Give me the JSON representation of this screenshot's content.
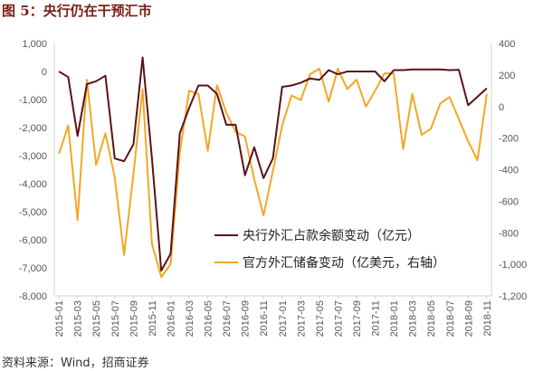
{
  "header": {
    "title": "图 5：央行仍在干预汇市"
  },
  "footer": {
    "source": "资料来源：Wind，招商证券"
  },
  "colors": {
    "series1": "#5b1315",
    "series2": "#f5a623",
    "axis": "#d0d0d0",
    "text": "#555555"
  },
  "chart_data": {
    "type": "line",
    "x": [
      "2015-01",
      "2015-02",
      "2015-03",
      "2015-04",
      "2015-05",
      "2015-06",
      "2015-07",
      "2015-08",
      "2015-09",
      "2015-10",
      "2015-11",
      "2015-12",
      "2016-01",
      "2016-02",
      "2016-03",
      "2016-04",
      "2016-05",
      "2016-06",
      "2016-07",
      "2016-08",
      "2016-09",
      "2016-10",
      "2016-11",
      "2016-12",
      "2017-01",
      "2017-02",
      "2017-03",
      "2017-04",
      "2017-05",
      "2017-06",
      "2017-07",
      "2017-08",
      "2017-09",
      "2017-10",
      "2017-11",
      "2017-12",
      "2018-01",
      "2018-02",
      "2018-03",
      "2018-04",
      "2018-05",
      "2018-06",
      "2018-07",
      "2018-08",
      "2018-09",
      "2018-10",
      "2018-11"
    ],
    "x_tick_labels": [
      "2015-01",
      "2015-03",
      "2015-05",
      "2015-07",
      "2015-09",
      "2015-11",
      "2016-01",
      "2016-03",
      "2016-05",
      "2016-07",
      "2016-09",
      "2016-11",
      "2017-01",
      "2017-03",
      "2017-05",
      "2017-07",
      "2017-09",
      "2017-11",
      "2018-01",
      "2018-03",
      "2018-05",
      "2018-07",
      "2018-09",
      "2018-11"
    ],
    "y_left": {
      "ylim": [
        -8000,
        1000
      ],
      "ticks": [
        "1,000",
        "0",
        "-1,000",
        "-2,000",
        "-3,000",
        "-4,000",
        "-5,000",
        "-6,000",
        "-7,000",
        "-8,000"
      ]
    },
    "y_right": {
      "ylim": [
        -1200,
        400
      ],
      "ticks": [
        "400",
        "200",
        "0",
        "-200",
        "-400",
        "-600",
        "-800",
        "-1,000",
        "-1,200"
      ]
    },
    "legend_position": "center-right",
    "grid": false,
    "series": [
      {
        "name": "央行外汇占款余额变动（亿元）",
        "axis": "left",
        "values": [
          0,
          -200,
          -2300,
          -450,
          -350,
          -150,
          -3100,
          -3200,
          -2600,
          500,
          -3100,
          -7100,
          -6500,
          -2200,
          -1300,
          -500,
          -500,
          -800,
          -1900,
          -1900,
          -3700,
          -2700,
          -3800,
          -3100,
          -550,
          -500,
          -400,
          -250,
          -300,
          50,
          -100,
          0,
          0,
          0,
          0,
          -350,
          50,
          50,
          70,
          70,
          70,
          70,
          50,
          60,
          -1200,
          -900,
          -600
        ]
      },
      {
        "name": "官方外汇储备变动（亿美元，右轴）",
        "axis": "right",
        "values": [
          -300,
          -120,
          -720,
          170,
          -370,
          -170,
          -450,
          -940,
          -430,
          110,
          -870,
          -1080,
          -1000,
          -290,
          100,
          80,
          -280,
          135,
          -40,
          -160,
          -190,
          -460,
          -690,
          -410,
          -120,
          70,
          40,
          205,
          240,
          30,
          240,
          110,
          170,
          0,
          100,
          210,
          210,
          -270,
          80,
          -180,
          -140,
          20,
          60,
          -80,
          -220,
          -340,
          80
        ]
      }
    ]
  }
}
